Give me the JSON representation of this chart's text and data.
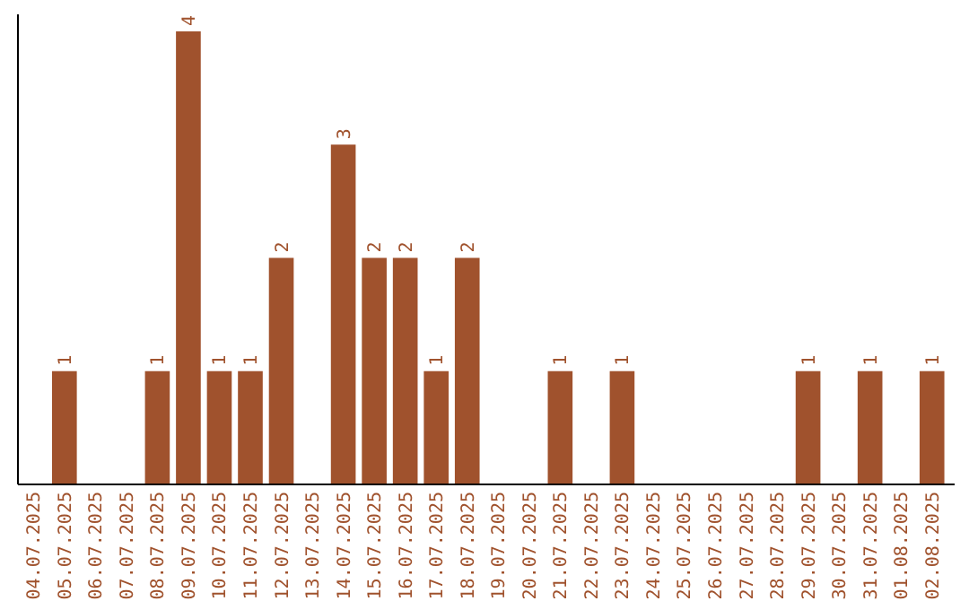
{
  "chart_data": {
    "type": "bar",
    "categories": [
      "04.07.2025",
      "05.07.2025",
      "06.07.2025",
      "07.07.2025",
      "08.07.2025",
      "09.07.2025",
      "10.07.2025",
      "11.07.2025",
      "12.07.2025",
      "13.07.2025",
      "14.07.2025",
      "15.07.2025",
      "16.07.2025",
      "17.07.2025",
      "18.07.2025",
      "19.07.2025",
      "20.07.2025",
      "21.07.2025",
      "22.07.2025",
      "23.07.2025",
      "24.07.2025",
      "25.07.2025",
      "26.07.2025",
      "27.07.2025",
      "28.07.2025",
      "29.07.2025",
      "30.07.2025",
      "31.07.2025",
      "01.08.2025",
      "02.08.2025"
    ],
    "values": [
      0,
      1,
      0,
      0,
      1,
      4,
      1,
      1,
      2,
      0,
      3,
      2,
      2,
      1,
      2,
      0,
      0,
      1,
      0,
      1,
      0,
      0,
      0,
      0,
      0,
      1,
      0,
      1,
      0,
      1
    ],
    "value_labels": [
      null,
      "1",
      null,
      null,
      "1",
      "4",
      "1",
      "1",
      "2",
      null,
      "3",
      "2",
      "2",
      "1",
      "2",
      null,
      null,
      "1",
      null,
      "1",
      null,
      null,
      null,
      null,
      null,
      "1",
      null,
      "1",
      null,
      "1"
    ],
    "color": "#a0522d",
    "ylim": [
      0,
      4.15
    ],
    "tick_labels": "x"
  }
}
